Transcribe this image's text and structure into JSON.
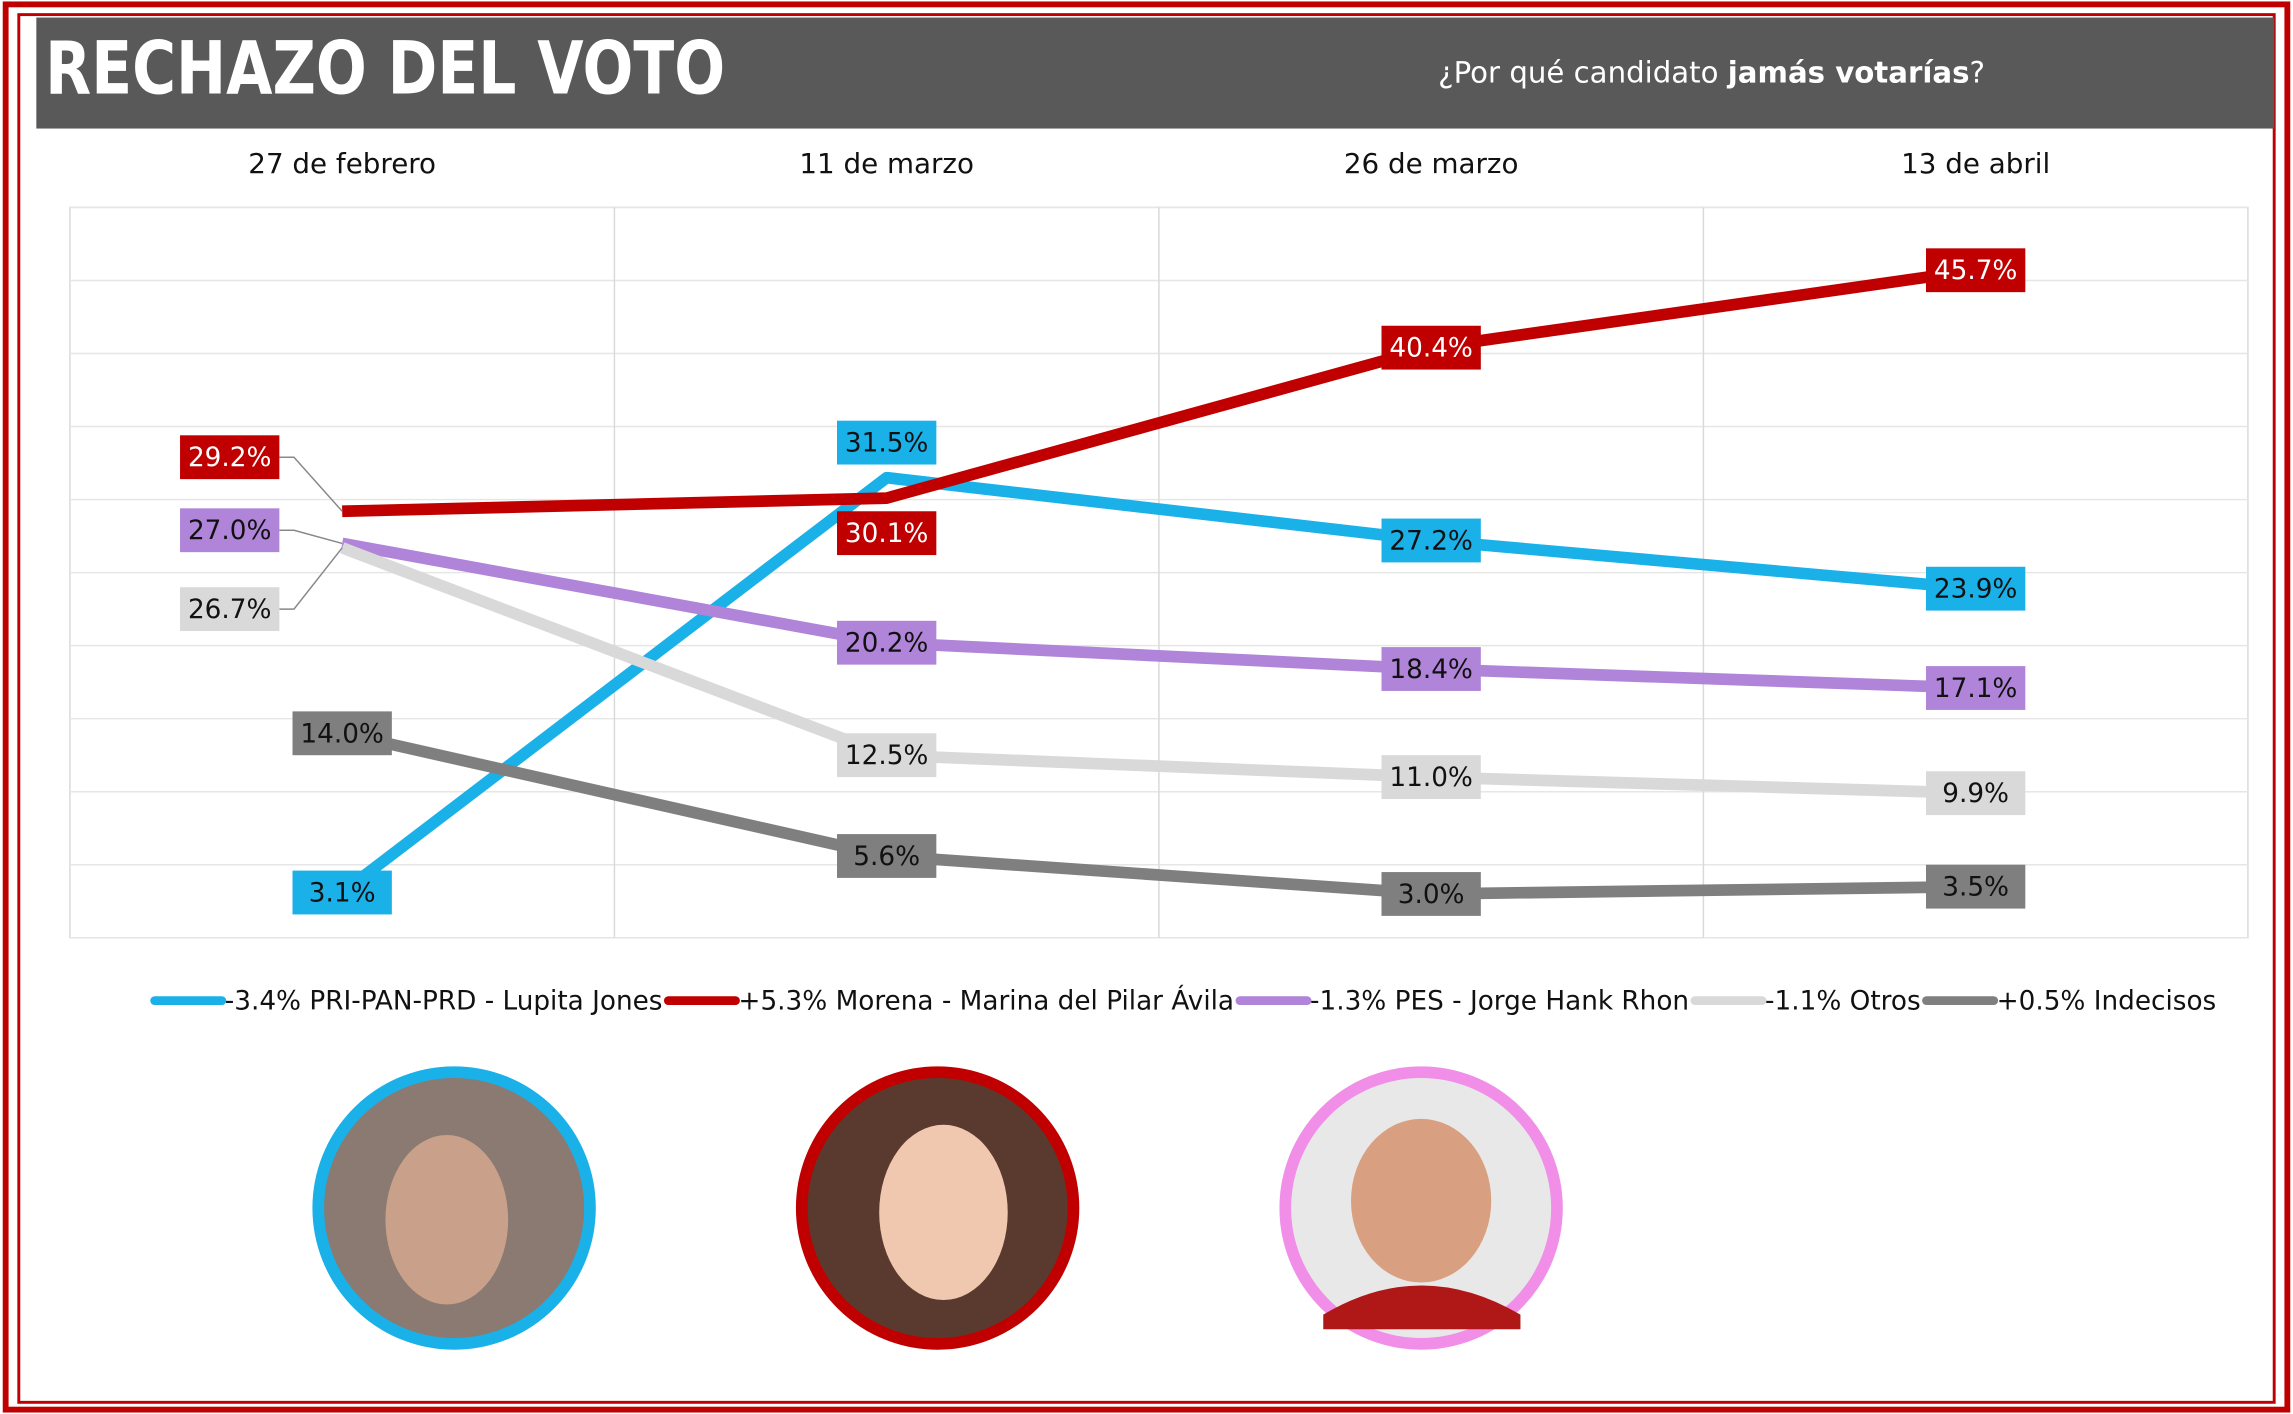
{
  "chart_data": {
    "type": "line",
    "title": "RECHAZO DEL VOTO",
    "subtitle": [
      "¿Por qué candidato",
      "jamás votarías",
      "?"
    ],
    "categories": [
      "27 de febrero",
      "11 de marzo",
      "26 de marzo",
      "13 de abril"
    ],
    "ylim": [
      0,
      50
    ],
    "yticks": [
      0,
      5,
      10,
      15,
      20,
      25,
      30,
      35,
      40,
      45,
      50
    ],
    "grid": true,
    "series": [
      {
        "name": "-3.4% PRI-PAN-PRD - Lupita Jones",
        "color": "#1ab0e8",
        "values": [
          3.1,
          31.5,
          27.2,
          23.9
        ],
        "value_labels": [
          "3.1%",
          "31.5%",
          "27.2%",
          "23.9%"
        ]
      },
      {
        "name": "+5.3% Morena - Marina del Pilar Ávila",
        "color": "#c00000",
        "values": [
          29.2,
          30.1,
          40.4,
          45.7
        ],
        "value_labels": [
          "29.2%",
          "30.1%",
          "40.4%",
          "45.7%"
        ]
      },
      {
        "name": "-1.3% PES - Jorge Hank Rhon",
        "color": "#b084d8",
        "values": [
          27.0,
          20.2,
          18.4,
          17.1
        ],
        "value_labels": [
          "27.0%",
          "20.2%",
          "18.4%",
          "17.1%"
        ]
      },
      {
        "name": "-1.1% Otros",
        "color": "#d9d9d9",
        "values": [
          26.7,
          12.5,
          11.0,
          9.9
        ],
        "value_labels": [
          "26.7%",
          "12.5%",
          "11.0%",
          "9.9%"
        ]
      },
      {
        "name": "+0.5% Indecisos",
        "color": "#7f7f7f",
        "values": [
          14.0,
          5.6,
          3.0,
          3.5
        ],
        "value_labels": [
          "14.0%",
          "5.6%",
          "3.0%",
          "3.5%"
        ]
      }
    ]
  }
}
